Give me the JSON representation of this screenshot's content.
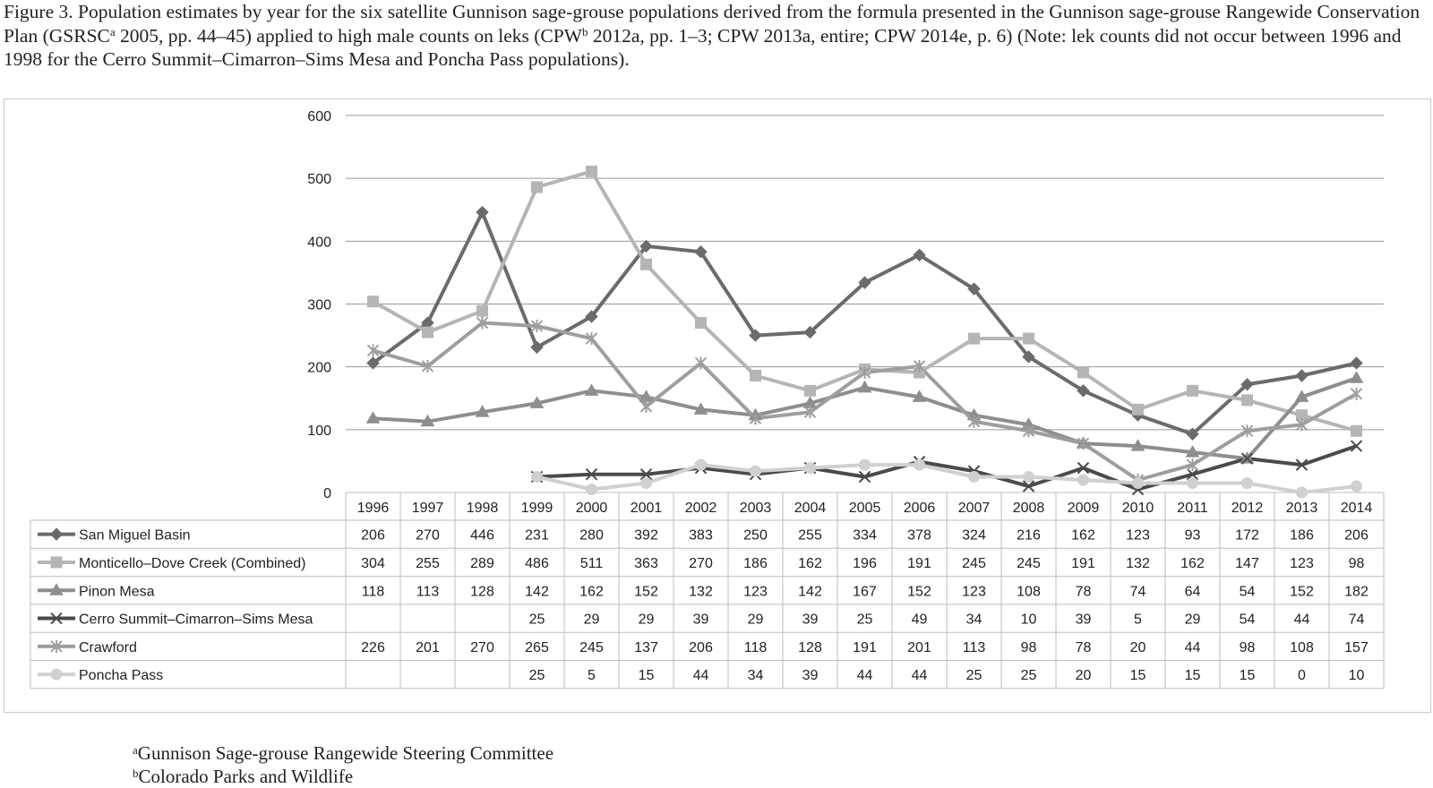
{
  "caption": {
    "prefix": "Figure 3.  Population estimates by year for the six satellite Gunnison sage-grouse populations derived from the formula presented in the Gunnison sage-grouse Rangewide Conservation Plan (GSRSC",
    "sup_a": "a",
    "middle": " 2005, pp. 44–45) applied to high male counts on leks (CPW",
    "sup_b": "b",
    "suffix": " 2012a, pp. 1–3; CPW 2013a, entire; CPW 2014e, p. 6) (Note: lek counts did not occur between 1996 and 1998 for the Cerro Summit–Cimarron–Sims Mesa and Poncha Pass populations)."
  },
  "chart_data": {
    "type": "line",
    "title": "",
    "xlabel": "",
    "ylabel": "",
    "ylim": [
      0,
      600
    ],
    "y_ticks": [
      "0",
      "100",
      "200",
      "300",
      "400",
      "500",
      "600"
    ],
    "grid": true,
    "legend": "data-table-left",
    "categories": [
      "1996",
      "1997",
      "1998",
      "1999",
      "2000",
      "2001",
      "2002",
      "2003",
      "2004",
      "2005",
      "2006",
      "2007",
      "2008",
      "2009",
      "2010",
      "2011",
      "2012",
      "2013",
      "2014"
    ],
    "series": [
      {
        "name": "San Miguel Basin",
        "marker": "diamond",
        "color": "#6b6b6b",
        "values": [
          206,
          270,
          446,
          231,
          280,
          392,
          383,
          250,
          255,
          334,
          378,
          324,
          216,
          162,
          123,
          93,
          172,
          186,
          206
        ]
      },
      {
        "name": "Monticello–Dove Creek (Combined)",
        "marker": "square",
        "color": "#b5b5b5",
        "values": [
          304,
          255,
          289,
          486,
          511,
          363,
          270,
          186,
          162,
          196,
          191,
          245,
          245,
          191,
          132,
          162,
          147,
          123,
          98
        ]
      },
      {
        "name": "Pinon Mesa",
        "marker": "triangle",
        "color": "#8e8e8e",
        "values": [
          118,
          113,
          128,
          142,
          162,
          152,
          132,
          123,
          142,
          167,
          152,
          123,
          108,
          78,
          74,
          64,
          54,
          152,
          182
        ]
      },
      {
        "name": "Cerro Summit–Cimarron–Sims Mesa",
        "marker": "x",
        "color": "#4a4a4a",
        "values": [
          null,
          null,
          null,
          25,
          29,
          29,
          39,
          29,
          39,
          25,
          49,
          34,
          10,
          39,
          5,
          29,
          54,
          44,
          74
        ]
      },
      {
        "name": "Crawford",
        "marker": "star",
        "color": "#9e9e9e",
        "values": [
          226,
          201,
          270,
          265,
          245,
          137,
          206,
          118,
          128,
          191,
          201,
          113,
          98,
          78,
          20,
          44,
          98,
          108,
          157
        ]
      },
      {
        "name": "Poncha Pass",
        "marker": "circle",
        "color": "#d0d0d0",
        "values": [
          null,
          null,
          null,
          25,
          5,
          15,
          44,
          34,
          39,
          44,
          44,
          25,
          25,
          20,
          15,
          15,
          15,
          0,
          10
        ]
      }
    ]
  },
  "footnotes": [
    {
      "sup": "a",
      "text": "Gunnison Sage-grouse Rangewide Steering Committee"
    },
    {
      "sup": "b",
      "text": "Colorado Parks and Wildlife"
    }
  ]
}
